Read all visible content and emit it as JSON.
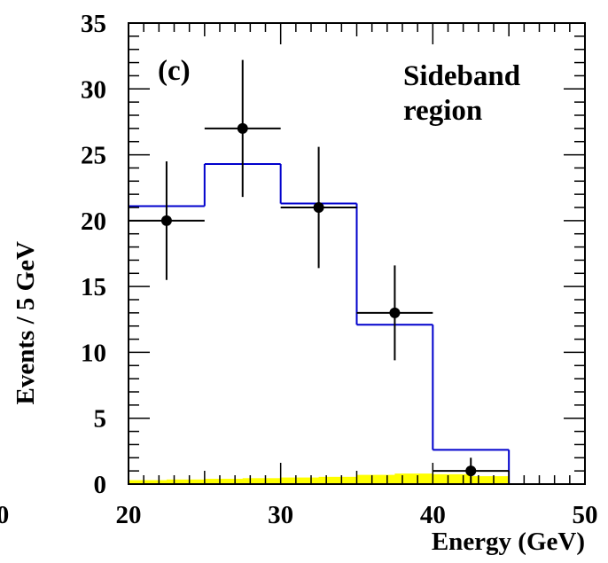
{
  "chart_data": {
    "type": "histogram",
    "xlabel": "Energy (GeV)",
    "ylabel": "Events / 5 GeV",
    "xlim": [
      20,
      50
    ],
    "ylim": [
      0,
      35
    ],
    "x_ticks": [
      20,
      30,
      40,
      50
    ],
    "x_tick_labels": [
      "20",
      "30",
      "40",
      "50"
    ],
    "stray_tick_label": "0",
    "y_ticks": [
      0,
      5,
      10,
      15,
      20,
      25,
      30,
      35
    ],
    "y_tick_labels": [
      "0",
      "5",
      "10",
      "15",
      "20",
      "25",
      "30",
      "35"
    ],
    "grid": false,
    "annotations": {
      "panel_label": "(c)",
      "region_line1": "Sideband",
      "region_line2": "region"
    },
    "colors": {
      "expectation": "#0000cc",
      "background": "#ffff00",
      "data": "#000000"
    },
    "series": [
      {
        "kind": "step",
        "bin_edges": [
          20,
          25,
          30,
          35,
          40,
          45
        ],
        "values": [
          21.1,
          24.3,
          21.3,
          12.1,
          2.6
        ]
      },
      {
        "kind": "filled_step",
        "bin_edges": [
          20,
          22.5,
          25,
          27.5,
          30,
          32.5,
          35,
          37.5,
          40,
          42.5,
          45
        ],
        "values": [
          0.3,
          0.35,
          0.4,
          0.45,
          0.5,
          0.55,
          0.7,
          0.8,
          0.75,
          0.6
        ]
      },
      {
        "kind": "points",
        "x": [
          22.5,
          27.5,
          32.5,
          37.5,
          42.5
        ],
        "y": [
          20,
          27,
          21,
          13,
          1
        ],
        "y_err_low": [
          4.5,
          5.2,
          4.6,
          3.6,
          1.0
        ],
        "y_err_high": [
          4.5,
          5.2,
          4.6,
          3.6,
          1.0
        ],
        "x_err": [
          2.5,
          2.5,
          2.5,
          2.5,
          2.5
        ]
      }
    ]
  }
}
